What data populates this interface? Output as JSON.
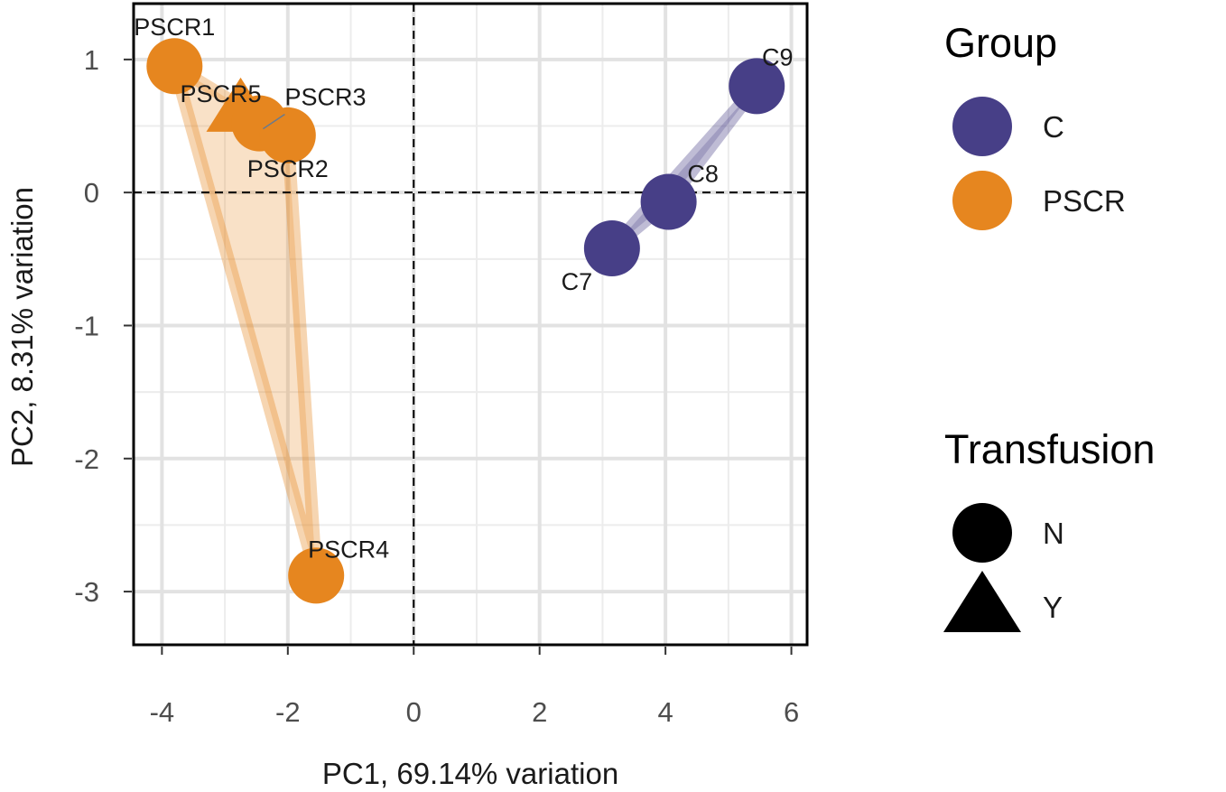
{
  "chart_data": {
    "type": "scatter",
    "xlabel": "PC1, 69.14% variation",
    "ylabel": "PC2, 8.31% variation",
    "xlim": [
      -4.45,
      6.25
    ],
    "ylim": [
      -3.4,
      1.42
    ],
    "x_ticks": [
      -4,
      -2,
      0,
      2,
      4,
      6
    ],
    "x_tick_labels": [
      "-4",
      "-2",
      "0",
      "2",
      "4",
      "6"
    ],
    "y_ticks": [
      -3,
      -2,
      -1,
      0,
      1
    ],
    "y_tick_labels": [
      "-3",
      "-2",
      "-1",
      "0",
      "1"
    ],
    "grid": true,
    "reference_lines": {
      "x": 0,
      "y": 0
    },
    "legend_placement": "right",
    "colors": {
      "C": "#473f87",
      "PSCR": "#e6861f"
    },
    "points": [
      {
        "label": "PSCR1",
        "group": "PSCR",
        "transfusion": "N",
        "x": -3.8,
        "y": 0.95
      },
      {
        "label": "PSCR5",
        "group": "PSCR",
        "transfusion": "Y",
        "x": -2.75,
        "y": 0.62
      },
      {
        "label": "PSCR3",
        "group": "PSCR",
        "transfusion": "N",
        "x": -2.45,
        "y": 0.52
      },
      {
        "label": "PSCR2",
        "group": "PSCR",
        "transfusion": "N",
        "x": -2.0,
        "y": 0.43
      },
      {
        "label": "PSCR4",
        "group": "PSCR",
        "transfusion": "N",
        "x": -1.55,
        "y": -2.88
      },
      {
        "label": "C7",
        "group": "C",
        "transfusion": "N",
        "x": 3.15,
        "y": -0.42
      },
      {
        "label": "C8",
        "group": "C",
        "transfusion": "N",
        "x": 4.05,
        "y": -0.07
      },
      {
        "label": "C9",
        "group": "C",
        "transfusion": "N",
        "x": 5.45,
        "y": 0.8
      }
    ],
    "legends": [
      {
        "title": "Group",
        "entries": [
          {
            "label": "C",
            "shape": "circle",
            "color": "#473f87"
          },
          {
            "label": "PSCR",
            "shape": "circle",
            "color": "#e6861f"
          }
        ]
      },
      {
        "title": "Transfusion",
        "entries": [
          {
            "label": "N",
            "shape": "circle",
            "color": "#000000"
          },
          {
            "label": "Y",
            "shape": "triangle",
            "color": "#000000"
          }
        ]
      }
    ]
  }
}
